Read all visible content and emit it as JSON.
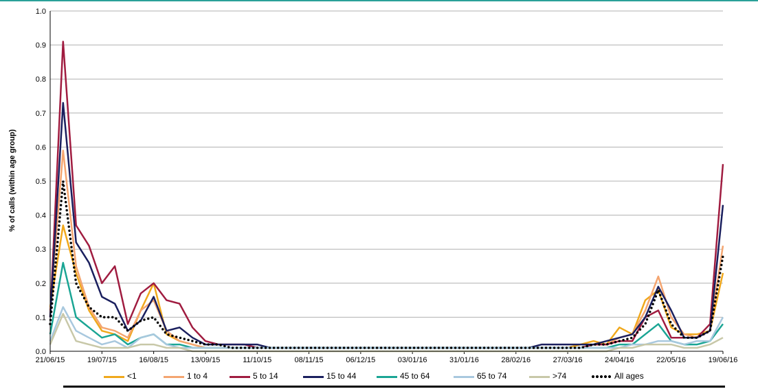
{
  "chart_data": {
    "type": "line",
    "ylabel": "% of calls (within age group)",
    "ylim": [
      0,
      1.0
    ],
    "yticks": [
      "0.0",
      "0.1",
      "0.2",
      "0.3",
      "0.4",
      "0.5",
      "0.6",
      "0.7",
      "0.8",
      "0.9",
      "1.0"
    ],
    "xticks": [
      "21/06/15",
      "19/07/15",
      "16/08/15",
      "13/09/15",
      "11/10/15",
      "08/11/15",
      "06/12/15",
      "03/01/16",
      "31/01/16",
      "28/02/16",
      "27/03/16",
      "24/04/16",
      "22/05/16",
      "19/06/16"
    ],
    "x_days": [
      0,
      7,
      14,
      21,
      28,
      35,
      42,
      49,
      56,
      63,
      70,
      77,
      84,
      91,
      98,
      105,
      112,
      119,
      126,
      133,
      140,
      147,
      154,
      161,
      168,
      175,
      182,
      189,
      196,
      203,
      210,
      217,
      224,
      231,
      238,
      245,
      252,
      259,
      266,
      273,
      280,
      287,
      294,
      301,
      308,
      315,
      322,
      329,
      336,
      343,
      350,
      357,
      364
    ],
    "series": [
      {
        "name": "<1",
        "color": "#f0a81c",
        "dash": "none",
        "values": [
          0.13,
          0.37,
          0.23,
          0.12,
          0.06,
          0.05,
          0.03,
          0.12,
          0.2,
          0.05,
          0.03,
          0.02,
          0.01,
          0.01,
          0.01,
          0.01,
          0.01,
          0.01,
          0.01,
          0.01,
          0.01,
          0.01,
          0.01,
          0.01,
          0.01,
          0.01,
          0.01,
          0.01,
          0.01,
          0.01,
          0.01,
          0.01,
          0.01,
          0.01,
          0.01,
          0.01,
          0.01,
          0.01,
          0.01,
          0.01,
          0.01,
          0.02,
          0.03,
          0.02,
          0.07,
          0.05,
          0.15,
          0.18,
          0.07,
          0.05,
          0.05,
          0.06,
          0.23
        ]
      },
      {
        "name": "1 to 4",
        "color": "#f4a570",
        "dash": "none",
        "values": [
          0.12,
          0.59,
          0.25,
          0.13,
          0.07,
          0.06,
          0.04,
          0.12,
          0.15,
          0.06,
          0.03,
          0.02,
          0.01,
          0.01,
          0.01,
          0.01,
          0.01,
          0.01,
          0.01,
          0.01,
          0.01,
          0.01,
          0.01,
          0.01,
          0.01,
          0.01,
          0.01,
          0.01,
          0.01,
          0.01,
          0.01,
          0.01,
          0.01,
          0.01,
          0.01,
          0.01,
          0.01,
          0.01,
          0.01,
          0.01,
          0.01,
          0.01,
          0.02,
          0.02,
          0.04,
          0.05,
          0.12,
          0.22,
          0.1,
          0.05,
          0.04,
          0.06,
          0.31
        ]
      },
      {
        "name": "5 to 14",
        "color": "#a01c40",
        "dash": "none",
        "values": [
          0.1,
          0.91,
          0.37,
          0.31,
          0.2,
          0.25,
          0.08,
          0.17,
          0.2,
          0.15,
          0.14,
          0.07,
          0.03,
          0.02,
          0.02,
          0.02,
          0.01,
          0.01,
          0.01,
          0.01,
          0.01,
          0.01,
          0.01,
          0.01,
          0.01,
          0.01,
          0.01,
          0.01,
          0.01,
          0.01,
          0.01,
          0.01,
          0.01,
          0.01,
          0.01,
          0.01,
          0.01,
          0.01,
          0.01,
          0.01,
          0.01,
          0.01,
          0.02,
          0.02,
          0.03,
          0.03,
          0.1,
          0.12,
          0.04,
          0.04,
          0.04,
          0.08,
          0.55
        ]
      },
      {
        "name": "15 to 44",
        "color": "#1a1f5e",
        "dash": "none",
        "values": [
          0.1,
          0.73,
          0.32,
          0.26,
          0.16,
          0.14,
          0.06,
          0.09,
          0.16,
          0.06,
          0.07,
          0.04,
          0.02,
          0.02,
          0.02,
          0.02,
          0.02,
          0.01,
          0.01,
          0.01,
          0.01,
          0.01,
          0.01,
          0.01,
          0.01,
          0.01,
          0.01,
          0.01,
          0.01,
          0.01,
          0.01,
          0.01,
          0.01,
          0.01,
          0.01,
          0.01,
          0.01,
          0.01,
          0.02,
          0.02,
          0.02,
          0.02,
          0.02,
          0.03,
          0.04,
          0.05,
          0.1,
          0.19,
          0.12,
          0.04,
          0.04,
          0.06,
          0.43
        ]
      },
      {
        "name": "45 to 64",
        "color": "#1aa594",
        "dash": "none",
        "values": [
          0.05,
          0.26,
          0.1,
          0.07,
          0.04,
          0.05,
          0.02,
          0.04,
          0.05,
          0.02,
          0.02,
          0.01,
          0.01,
          0.01,
          0.01,
          0.01,
          0.01,
          0.01,
          0.01,
          0.01,
          0.01,
          0.01,
          0.01,
          0.01,
          0.01,
          0.01,
          0.01,
          0.01,
          0.01,
          0.01,
          0.01,
          0.01,
          0.01,
          0.01,
          0.01,
          0.01,
          0.01,
          0.01,
          0.01,
          0.01,
          0.01,
          0.01,
          0.01,
          0.01,
          0.02,
          0.02,
          0.05,
          0.08,
          0.03,
          0.02,
          0.02,
          0.03,
          0.08
        ]
      },
      {
        "name": "65 to 74",
        "color": "#a8c8de",
        "dash": "none",
        "values": [
          0.03,
          0.13,
          0.06,
          0.04,
          0.02,
          0.03,
          0.01,
          0.04,
          0.05,
          0.02,
          0.01,
          0.01,
          0.01,
          0.01,
          0.01,
          0.01,
          0.01,
          0.01,
          0.01,
          0.01,
          0.01,
          0.01,
          0.01,
          0.01,
          0.01,
          0.01,
          0.01,
          0.01,
          0.01,
          0.01,
          0.01,
          0.01,
          0.01,
          0.01,
          0.01,
          0.01,
          0.01,
          0.01,
          0.01,
          0.01,
          0.01,
          0.01,
          0.01,
          0.01,
          0.01,
          0.02,
          0.02,
          0.03,
          0.03,
          0.02,
          0.03,
          0.03,
          0.1
        ]
      },
      {
        "name": ">74",
        "color": "#c8c8a8",
        "dash": "none",
        "values": [
          0.02,
          0.11,
          0.03,
          0.02,
          0.01,
          0.01,
          0.01,
          0.02,
          0.02,
          0.01,
          0.01,
          0.0,
          0.0,
          0.0,
          0.0,
          0.0,
          0.0,
          0.0,
          0.0,
          0.0,
          0.0,
          0.0,
          0.0,
          0.0,
          0.0,
          0.0,
          0.0,
          0.0,
          0.0,
          0.0,
          0.0,
          0.0,
          0.0,
          0.0,
          0.0,
          0.0,
          0.0,
          0.0,
          0.0,
          0.0,
          0.0,
          0.0,
          0.0,
          0.0,
          0.01,
          0.01,
          0.02,
          0.02,
          0.02,
          0.01,
          0.01,
          0.02,
          0.04
        ]
      },
      {
        "name": "All ages",
        "color": "#000000",
        "dash": "dots",
        "values": [
          0.08,
          0.5,
          0.2,
          0.13,
          0.1,
          0.1,
          0.06,
          0.09,
          0.1,
          0.05,
          0.04,
          0.03,
          0.02,
          0.02,
          0.01,
          0.01,
          0.01,
          0.01,
          0.01,
          0.01,
          0.01,
          0.01,
          0.01,
          0.01,
          0.01,
          0.01,
          0.01,
          0.01,
          0.01,
          0.01,
          0.01,
          0.01,
          0.01,
          0.01,
          0.01,
          0.01,
          0.01,
          0.01,
          0.01,
          0.01,
          0.01,
          0.01,
          0.02,
          0.02,
          0.03,
          0.04,
          0.08,
          0.18,
          0.08,
          0.04,
          0.04,
          0.06,
          0.28
        ]
      }
    ]
  }
}
